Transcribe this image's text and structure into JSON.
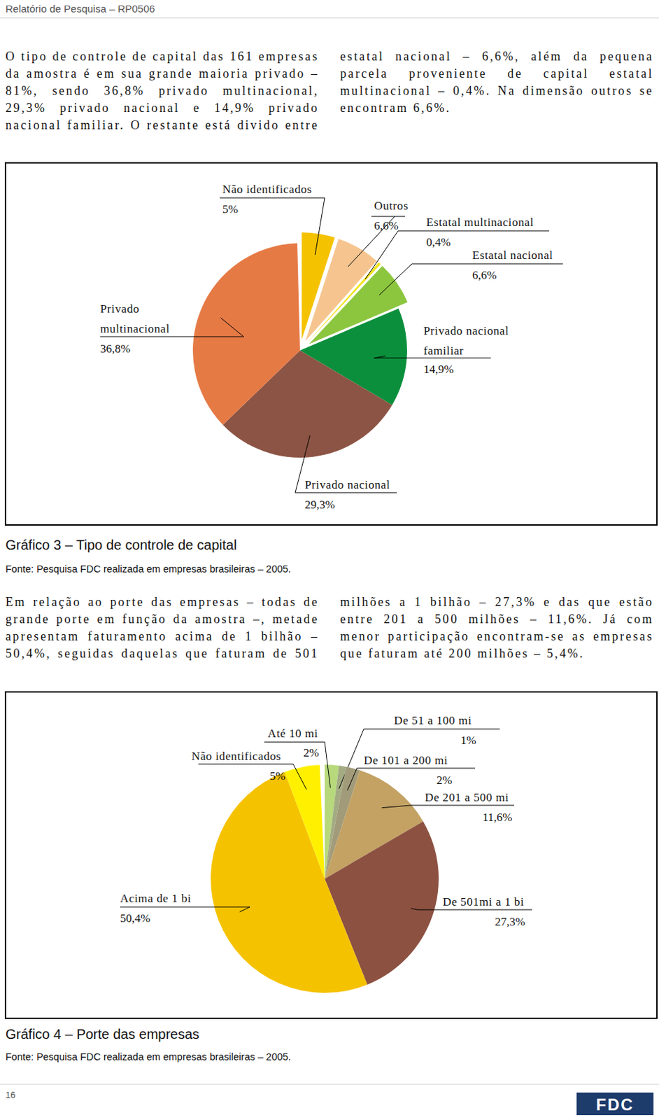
{
  "header": {
    "title": "Relatório de Pesquisa – RP0506"
  },
  "paragraphs": [
    "O tipo de controle de capital das 161 empresas da amostra é em sua grande maioria privado – 81%, sendo 36,8% privado multinacional, 29,3% privado nacional e 14,9% privado nacional familiar. O restante está divido entre estatal nacional – 6,6%, além da pequena parcela proveniente de capital estatal multinacional – 0,4%. Na dimensão outros se encontram 6,6%.",
    "Em relação ao porte das empresas – todas de grande porte em função da amostra –, metade apresentam faturamento acima de 1 bilhão – 50,4%, seguidas daquelas que faturam de 501 milhões a 1 bilhão – 27,3% e das que estão entre 201 a 500 milhões – 11,6%. Já com menor participação encontram-se as empresas que faturam até 200 milhões – 5,4%."
  ],
  "chart_data": [
    {
      "type": "pie",
      "title": "Gráfico 3 – Tipo de controle de capital",
      "source": "Fonte: Pesquisa FDC realizada em empresas brasileiras – 2005.",
      "categories": [
        "Não identificados",
        "Outros",
        "Estatal multinacional",
        "Estatal nacional",
        "Privado nacional familiar",
        "Privado nacional",
        "Privado multinacional"
      ],
      "values": [
        5,
        6.6,
        0.4,
        6.6,
        14.9,
        29.3,
        36.8
      ],
      "value_labels": [
        "5%",
        "6,6%",
        "0,4%",
        "6,6%",
        "14,9%",
        "29,3%",
        "36,8%"
      ],
      "colors": [
        "#f5c200",
        "#f6c58f",
        "#f2e41e",
        "#8cc63f",
        "#0b8f3c",
        "#8c5444",
        "#e67a45"
      ],
      "data_labels": true
    },
    {
      "type": "pie",
      "title": "Gráfico 4 – Porte das empresas",
      "source": "Fonte: Pesquisa FDC realizada em empresas brasileiras – 2005.",
      "categories": [
        "Até 10 mi",
        "De 51 a 100 mi",
        "De 101 a 200 mi",
        "De 201 a 500 mi",
        "De 501mi a 1 bi",
        "Acima de 1 bi",
        "Não identificados"
      ],
      "values": [
        2,
        1,
        2,
        11.6,
        27.3,
        50.4,
        5
      ],
      "value_labels": [
        "2%",
        "1%",
        "2%",
        "11,6%",
        "27,3%",
        "50,4%",
        "5%"
      ],
      "colors": [
        "#b7d97c",
        "#a3ab82",
        "#a19b7a",
        "#c3a264",
        "#8c5141",
        "#f5c200",
        "#fff000"
      ],
      "data_labels": true
    }
  ],
  "footer": {
    "page": "16",
    "logo": "FDC"
  }
}
